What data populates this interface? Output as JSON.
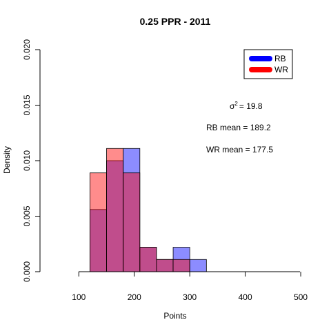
{
  "chart_data": {
    "type": "histogram",
    "title": "0.25  PPR -  2011",
    "xlabel": "Points",
    "ylabel": "Density",
    "xlim": [
      30,
      480
    ],
    "ylim": [
      0,
      0.02
    ],
    "x_ticks": [
      100,
      200,
      300,
      400,
      500
    ],
    "x_tick_labels": [
      "100",
      "200",
      "300",
      "400",
      "500"
    ],
    "y_ticks": [
      0.0,
      0.005,
      0.01,
      0.015,
      0.02
    ],
    "y_tick_labels": [
      "0.000",
      "0.005",
      "0.010",
      "0.015",
      "0.020"
    ],
    "series": [
      {
        "name": "RB",
        "color": "#0000ff",
        "fill": "rgba(0,0,255,0.45)",
        "bins": [
          {
            "x0": 120,
            "x1": 150,
            "density": 0.0056
          },
          {
            "x0": 150,
            "x1": 180,
            "density": 0.01
          },
          {
            "x0": 180,
            "x1": 210,
            "density": 0.0111
          },
          {
            "x0": 210,
            "x1": 240,
            "density": 0.0022
          },
          {
            "x0": 240,
            "x1": 270,
            "density": 0.0011
          },
          {
            "x0": 270,
            "x1": 300,
            "density": 0.0022
          },
          {
            "x0": 300,
            "x1": 330,
            "density": 0.0011
          }
        ]
      },
      {
        "name": "WR",
        "color": "#ff0000",
        "fill": "rgba(255,0,0,0.45)",
        "bins": [
          {
            "x0": 120,
            "x1": 150,
            "density": 0.0089
          },
          {
            "x0": 150,
            "x1": 180,
            "density": 0.0111
          },
          {
            "x0": 180,
            "x1": 210,
            "density": 0.0089
          },
          {
            "x0": 210,
            "x1": 240,
            "density": 0.0022
          },
          {
            "x0": 240,
            "x1": 270,
            "density": 0.0011
          },
          {
            "x0": 270,
            "x1": 300,
            "density": 0.0011
          }
        ]
      }
    ],
    "legend": {
      "position": "top-right",
      "entries": [
        {
          "label": "RB",
          "color": "#0000ff"
        },
        {
          "label": "WR",
          "color": "#ff0000"
        }
      ]
    },
    "annotations": {
      "sigma_symbol": "σ",
      "sigma_sup": "2",
      "sigma_value": "=   19.8",
      "rb_mean": "RB mean = 189.2",
      "wr_mean": "WR mean = 177.5"
    }
  }
}
